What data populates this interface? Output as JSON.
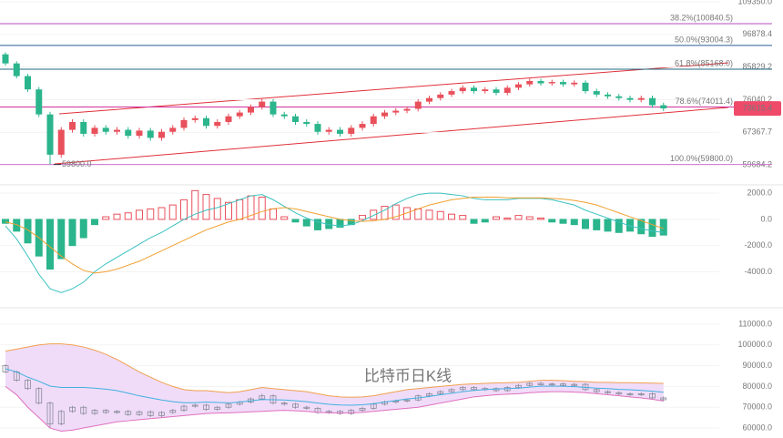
{
  "chart_data": [
    {
      "type": "candlestick",
      "log_scale": true,
      "grid": true,
      "ylim": [
        56000,
        109350
      ],
      "yticks": [
        {
          "value": 109350,
          "label": "109350.0"
        },
        96878.4,
        85829.2,
        76040.2,
        67367.7,
        59684.2
      ],
      "up_color": "#e8505b",
      "down_color": "#2bb58c",
      "open": [
        90000,
        87000,
        83000,
        79000,
        72000,
        62000,
        68000,
        70000,
        67000,
        68500,
        67500,
        68000,
        66500,
        67800,
        66000,
        67500,
        68500,
        70500,
        71000,
        69000,
        70000,
        71500,
        72500,
        74000,
        75500,
        72000,
        71500,
        70000,
        69500,
        67500,
        68000,
        67000,
        68500,
        69500,
        71500,
        72500,
        73000,
        73500,
        75500,
        76500,
        77500,
        78500,
        79500,
        78500,
        79000,
        78000,
        79500,
        80500,
        81500,
        80800,
        81200,
        80500,
        81000,
        78500,
        77500,
        77000,
        76500,
        76000,
        76500,
        74500
      ],
      "high": [
        90700,
        87700,
        83700,
        79700,
        72700,
        68700,
        70700,
        70700,
        69200,
        69200,
        68700,
        68700,
        68500,
        68500,
        68200,
        69200,
        71200,
        71700,
        71700,
        70700,
        72200,
        73200,
        74700,
        76500,
        76200,
        72700,
        72200,
        70700,
        70200,
        68700,
        68700,
        69200,
        70200,
        72200,
        73200,
        73700,
        74200,
        76200,
        77200,
        78200,
        79200,
        80200,
        80200,
        79700,
        79700,
        80200,
        81200,
        82200,
        82200,
        81900,
        81900,
        81700,
        81700,
        79200,
        78200,
        77700,
        77200,
        77200,
        77200,
        75200
      ],
      "low": [
        86300,
        82300,
        78300,
        71300,
        59800,
        61300,
        67300,
        66300,
        66300,
        66800,
        66800,
        65800,
        65800,
        65300,
        65300,
        66800,
        67800,
        69800,
        68300,
        68300,
        69300,
        70800,
        71800,
        73300,
        71300,
        70800,
        69300,
        68800,
        66800,
        66800,
        66300,
        66300,
        67800,
        68800,
        70800,
        71800,
        72300,
        72800,
        74800,
        75800,
        76800,
        77800,
        77800,
        77800,
        77300,
        77300,
        78800,
        79800,
        80100,
        80100,
        79800,
        79800,
        77800,
        76800,
        76300,
        75800,
        75300,
        75300,
        73800,
        72900
      ],
      "close": [
        87000,
        83000,
        79000,
        72000,
        62000,
        68000,
        70000,
        67000,
        68500,
        67500,
        68000,
        66500,
        67800,
        66000,
        67500,
        68500,
        70500,
        71000,
        69000,
        70000,
        71500,
        72500,
        74000,
        75500,
        72000,
        71500,
        70000,
        69500,
        67500,
        68000,
        67000,
        68500,
        69500,
        71500,
        72500,
        73000,
        73500,
        75500,
        76500,
        77500,
        78500,
        79500,
        78500,
        79000,
        78000,
        79500,
        80500,
        81500,
        80800,
        81200,
        80500,
        81000,
        78500,
        77500,
        77000,
        76500,
        76000,
        76500,
        74500,
        73615.4
      ],
      "levels": [
        {
          "label": "38.2%(100840.5)",
          "value": 100840.5,
          "color": "#b84cc0"
        },
        {
          "label": "50.0%(93004.3)",
          "value": 93004.3,
          "color": "#2a5a9a"
        },
        {
          "label": "61.8%(85168.0)",
          "value": 85168,
          "color": "#1f6a80"
        },
        {
          "label": "78.6%(74011.4)",
          "value": 74011.4,
          "color": "#d0309a"
        },
        {
          "label": "100.0%(59800.0)",
          "value": 59800,
          "color": "#d070d0"
        }
      ],
      "last_price": 73615.4,
      "last_price_color": "#ef4a6a",
      "low_label": "59800.0"
    },
    {
      "type": "macd",
      "grid": true,
      "ylim": [
        -6200,
        2500
      ],
      "yticks": [
        {
          "value": 2000,
          "label": "2000.0"
        },
        {
          "value": 0,
          "label": "0.0"
        },
        {
          "value": -2000,
          "label": "-2000.0"
        },
        {
          "value": -4000,
          "label": "-4000.0"
        }
      ],
      "up_color": "#e8505b",
      "down_color": "#2bb58c",
      "bars": [
        -300,
        -900,
        -1800,
        -2800,
        -3800,
        -3000,
        -2000,
        -1400,
        -400,
        200,
        400,
        500,
        700,
        800,
        900,
        1100,
        1500,
        2200,
        1900,
        1600,
        1300,
        1500,
        1800,
        1700,
        800,
        200,
        -200,
        -500,
        -800,
        -700,
        -600,
        -400,
        300,
        700,
        1000,
        1100,
        900,
        800,
        700,
        600,
        400,
        300,
        -300,
        -200,
        200,
        100,
        300,
        200,
        100,
        -200,
        -300,
        -400,
        -700,
        -800,
        -900,
        -1000,
        -900,
        -1100,
        -1300,
        -1200
      ],
      "lines": [
        {
          "color": "#3cc0c0",
          "values": [
            -500,
            -1500,
            -2800,
            -4200,
            -5300,
            -5600,
            -5300,
            -4800,
            -4000,
            -3400,
            -2900,
            -2400,
            -1900,
            -1400,
            -1000,
            -500,
            0,
            400,
            700,
            900,
            1200,
            1500,
            1800,
            1900,
            1500,
            1000,
            500,
            100,
            -200,
            -400,
            -500,
            -400,
            -100,
            300,
            700,
            1200,
            1600,
            1900,
            2000,
            2000,
            1900,
            1800,
            1600,
            1500,
            1500,
            1500,
            1600,
            1600,
            1600,
            1500,
            1300,
            1100,
            700,
            400,
            100,
            -200,
            -500,
            -700,
            -900,
            -1000
          ]
        },
        {
          "color": "#f0a030",
          "values": [
            -200,
            -400,
            -800,
            -1400,
            -2100,
            -2800,
            -3400,
            -3900,
            -4100,
            -4000,
            -3800,
            -3500,
            -3200,
            -2800,
            -2400,
            -2000,
            -1600,
            -1200,
            -800,
            -500,
            -200,
            0,
            300,
            600,
            800,
            900,
            800,
            600,
            400,
            200,
            0,
            -100,
            -150,
            -100,
            0,
            200,
            500,
            800,
            1100,
            1300,
            1500,
            1600,
            1700,
            1700,
            1700,
            1650,
            1650,
            1650,
            1650,
            1600,
            1550,
            1450,
            1300,
            1100,
            800,
            500,
            200,
            -100,
            -400,
            -700
          ]
        }
      ]
    },
    {
      "type": "bollinger",
      "grid": true,
      "ylim": [
        55200,
        114800
      ],
      "yticks": [
        {
          "value": 110000,
          "label": "110000.0"
        },
        {
          "value": 100000,
          "label": "100000.0"
        },
        {
          "value": 90000,
          "label": "90000.0"
        },
        {
          "value": 80000,
          "label": "80000.0"
        },
        {
          "value": 70000,
          "label": "70000.0"
        },
        {
          "value": 60000,
          "label": "60000.0"
        }
      ],
      "band_fill": "#f0dcf8",
      "bands": [
        {
          "color": "#f0a050",
          "values": [
            97000,
            98000,
            99000,
            100000,
            100500,
            100500,
            100000,
            99000,
            97500,
            95500,
            93000,
            90000,
            87000,
            84500,
            82000,
            80000,
            78500,
            78000,
            78000,
            77500,
            77000,
            77500,
            78500,
            79500,
            79000,
            78500,
            78000,
            77500,
            76500,
            75500,
            75000,
            74800,
            75000,
            75500,
            76500,
            77500,
            78500,
            79000,
            79500,
            80000,
            80500,
            81000,
            81300,
            81500,
            81700,
            81800,
            82000,
            82500,
            83000,
            83000,
            82800,
            82500,
            82300,
            82000,
            82000,
            81800,
            81800,
            81700,
            81600,
            81500
          ]
        },
        {
          "color": "#40b0e0",
          "values": [
            88500,
            87000,
            84500,
            82500,
            80200,
            79500,
            79500,
            79500,
            79200,
            78700,
            78000,
            76800,
            75500,
            74500,
            73500,
            72700,
            72200,
            72200,
            72500,
            72300,
            72100,
            72500,
            73100,
            73700,
            73600,
            73500,
            73100,
            72700,
            72000,
            71400,
            71100,
            71000,
            71200,
            71700,
            72500,
            73200,
            74000,
            74500,
            75200,
            76000,
            76700,
            77500,
            78100,
            78500,
            78800,
            79000,
            79200,
            79700,
            80100,
            80200,
            80100,
            79900,
            79600,
            79200,
            79000,
            78600,
            78400,
            78100,
            77700,
            77200
          ]
        },
        {
          "color": "#e070c0",
          "values": [
            80000,
            76000,
            70000,
            65000,
            60000,
            58500,
            59000,
            60000,
            61000,
            62000,
            63000,
            63500,
            64000,
            64500,
            65000,
            65500,
            66000,
            66500,
            67000,
            67200,
            67300,
            67500,
            67800,
            68000,
            68300,
            68500,
            68300,
            68000,
            67500,
            67300,
            67200,
            67300,
            67500,
            68000,
            68500,
            69000,
            69500,
            70000,
            71000,
            72000,
            73000,
            74000,
            75000,
            75500,
            76000,
            76300,
            76500,
            77000,
            77300,
            77500,
            77500,
            77300,
            77000,
            76500,
            76000,
            75500,
            75000,
            74500,
            73800,
            73000
          ]
        }
      ],
      "annotation": "比特币日K线",
      "annotation_color": "#e8404a"
    }
  ]
}
